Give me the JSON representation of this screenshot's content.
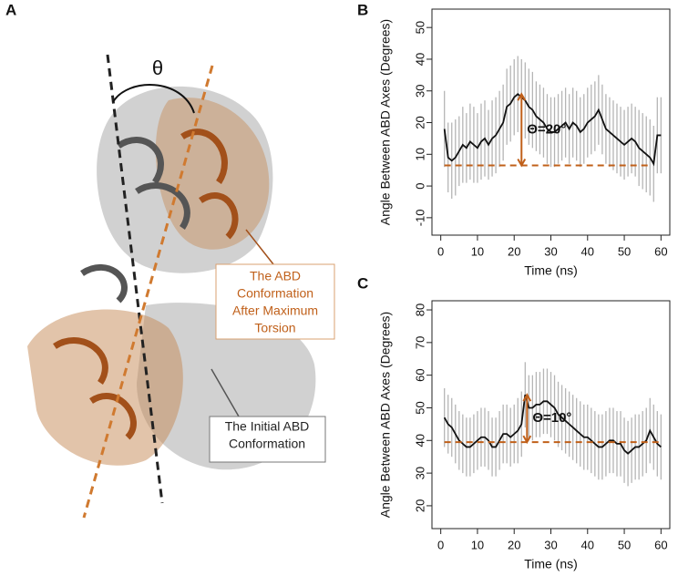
{
  "panel_a": {
    "label": "A",
    "angle_symbol": "θ",
    "callouts": [
      {
        "lines": [
          "The ABD",
          " Conformation",
          "After Maximum",
          "Torsion"
        ],
        "color": "#c0601a"
      },
      {
        "lines": [
          "The Initial ABD",
          "Conformation"
        ],
        "color": "#222222"
      }
    ]
  },
  "chart_data": [
    {
      "type": "line",
      "panel": "B",
      "x_label": "Time (ns)",
      "y_label": "Angle Between ABD Axes (Degrees)",
      "x": [
        1,
        2,
        3,
        4,
        5,
        6,
        7,
        8,
        9,
        10,
        11,
        12,
        13,
        14,
        15,
        16,
        17,
        18,
        19,
        20,
        21,
        22,
        23,
        24,
        25,
        26,
        27,
        28,
        29,
        30,
        31,
        32,
        33,
        34,
        35,
        36,
        37,
        38,
        39,
        40,
        41,
        42,
        43,
        44,
        45,
        46,
        47,
        48,
        49,
        50,
        51,
        52,
        53,
        54,
        55,
        56,
        57,
        58,
        59,
        60
      ],
      "series": [
        {
          "color": "#111111",
          "error_color": "#b5b5b5",
          "values": [
            18,
            9,
            8,
            9,
            11,
            13,
            12,
            14,
            13,
            12,
            14,
            15,
            13,
            15,
            16,
            18,
            20,
            25,
            26,
            28,
            29,
            28,
            27,
            25,
            24,
            22,
            21,
            20,
            18,
            17,
            17,
            18,
            19,
            20,
            18,
            20,
            19,
            17,
            18,
            20,
            21,
            22,
            24,
            21,
            18,
            17,
            16,
            15,
            14,
            13,
            14,
            15,
            14,
            12,
            11,
            10,
            9,
            7,
            16,
            16
          ],
          "errors": [
            12,
            11,
            12,
            12,
            11,
            12,
            11,
            12,
            12,
            11,
            12,
            12,
            11,
            12,
            12,
            12,
            12,
            12,
            12,
            12,
            12,
            12,
            12,
            12,
            12,
            11,
            11,
            11,
            11,
            11,
            11,
            11,
            11,
            11,
            11,
            11,
            11,
            11,
            11,
            11,
            11,
            11,
            11,
            11,
            11,
            11,
            11,
            11,
            11,
            11,
            11,
            11,
            11,
            12,
            12,
            12,
            12,
            12,
            12,
            12
          ]
        }
      ],
      "xlim": [
        -2.4,
        62.4
      ],
      "ylim": [
        -15.5,
        55.8
      ],
      "xticks": [
        0,
        10,
        20,
        30,
        40,
        50,
        60
      ],
      "yticks": [
        -10,
        0,
        10,
        20,
        30,
        40,
        50
      ],
      "annotation": {
        "text": "Θ=20°",
        "baseline": 6.5,
        "baseline_from": 1,
        "baseline_to": 57,
        "arrow_x": 22,
        "arrow_top": 29,
        "color": "#c0601a"
      }
    },
    {
      "type": "line",
      "panel": "C",
      "x_label": "Time (ns)",
      "y_label": "Angle Between ABD Axes (Degrees)",
      "x": [
        1,
        2,
        3,
        4,
        5,
        6,
        7,
        8,
        9,
        10,
        11,
        12,
        13,
        14,
        15,
        16,
        17,
        18,
        19,
        20,
        21,
        22,
        23,
        24,
        25,
        26,
        27,
        28,
        29,
        30,
        31,
        32,
        33,
        34,
        35,
        36,
        37,
        38,
        39,
        40,
        41,
        42,
        43,
        44,
        45,
        46,
        47,
        48,
        49,
        50,
        51,
        52,
        53,
        54,
        55,
        56,
        57,
        58,
        59,
        60
      ],
      "series": [
        {
          "color": "#111111",
          "error_color": "#b5b5b5",
          "values": [
            47,
            45,
            44,
            42,
            40,
            39,
            38,
            38,
            39,
            40,
            41,
            41,
            40,
            38,
            38,
            40,
            42,
            42,
            41,
            42,
            43,
            45,
            54,
            50,
            50,
            51,
            51,
            52,
            52,
            51,
            50,
            48,
            47,
            46,
            45,
            44,
            43,
            42,
            41,
            41,
            40,
            39,
            38,
            38,
            39,
            40,
            40,
            39,
            39,
            37,
            36,
            37,
            38,
            38,
            39,
            40,
            43,
            41,
            39,
            38
          ],
          "errors": [
            9,
            9,
            9,
            9,
            9,
            9,
            9,
            9,
            9,
            9,
            9,
            9,
            9,
            9,
            9,
            9,
            9,
            9,
            9,
            9,
            10,
            10,
            10,
            10,
            10,
            10,
            10,
            10,
            10,
            10,
            10,
            10,
            10,
            10,
            10,
            10,
            10,
            10,
            10,
            10,
            10,
            10,
            10,
            10,
            10,
            10,
            10,
            10,
            10,
            10,
            10,
            10,
            10,
            10,
            10,
            10,
            10,
            10,
            10,
            10
          ]
        }
      ],
      "xlim": [
        -2.4,
        62.4
      ],
      "ylim": [
        13,
        82.8
      ],
      "xticks": [
        0,
        10,
        20,
        30,
        40,
        50,
        60
      ],
      "yticks": [
        20,
        30,
        40,
        50,
        60,
        70,
        80
      ],
      "annotation": {
        "text": "Θ=10°",
        "baseline": 39.5,
        "baseline_from": 1,
        "baseline_to": 60,
        "arrow_x": 23.5,
        "arrow_top": 54,
        "color": "#c0601a"
      }
    }
  ]
}
